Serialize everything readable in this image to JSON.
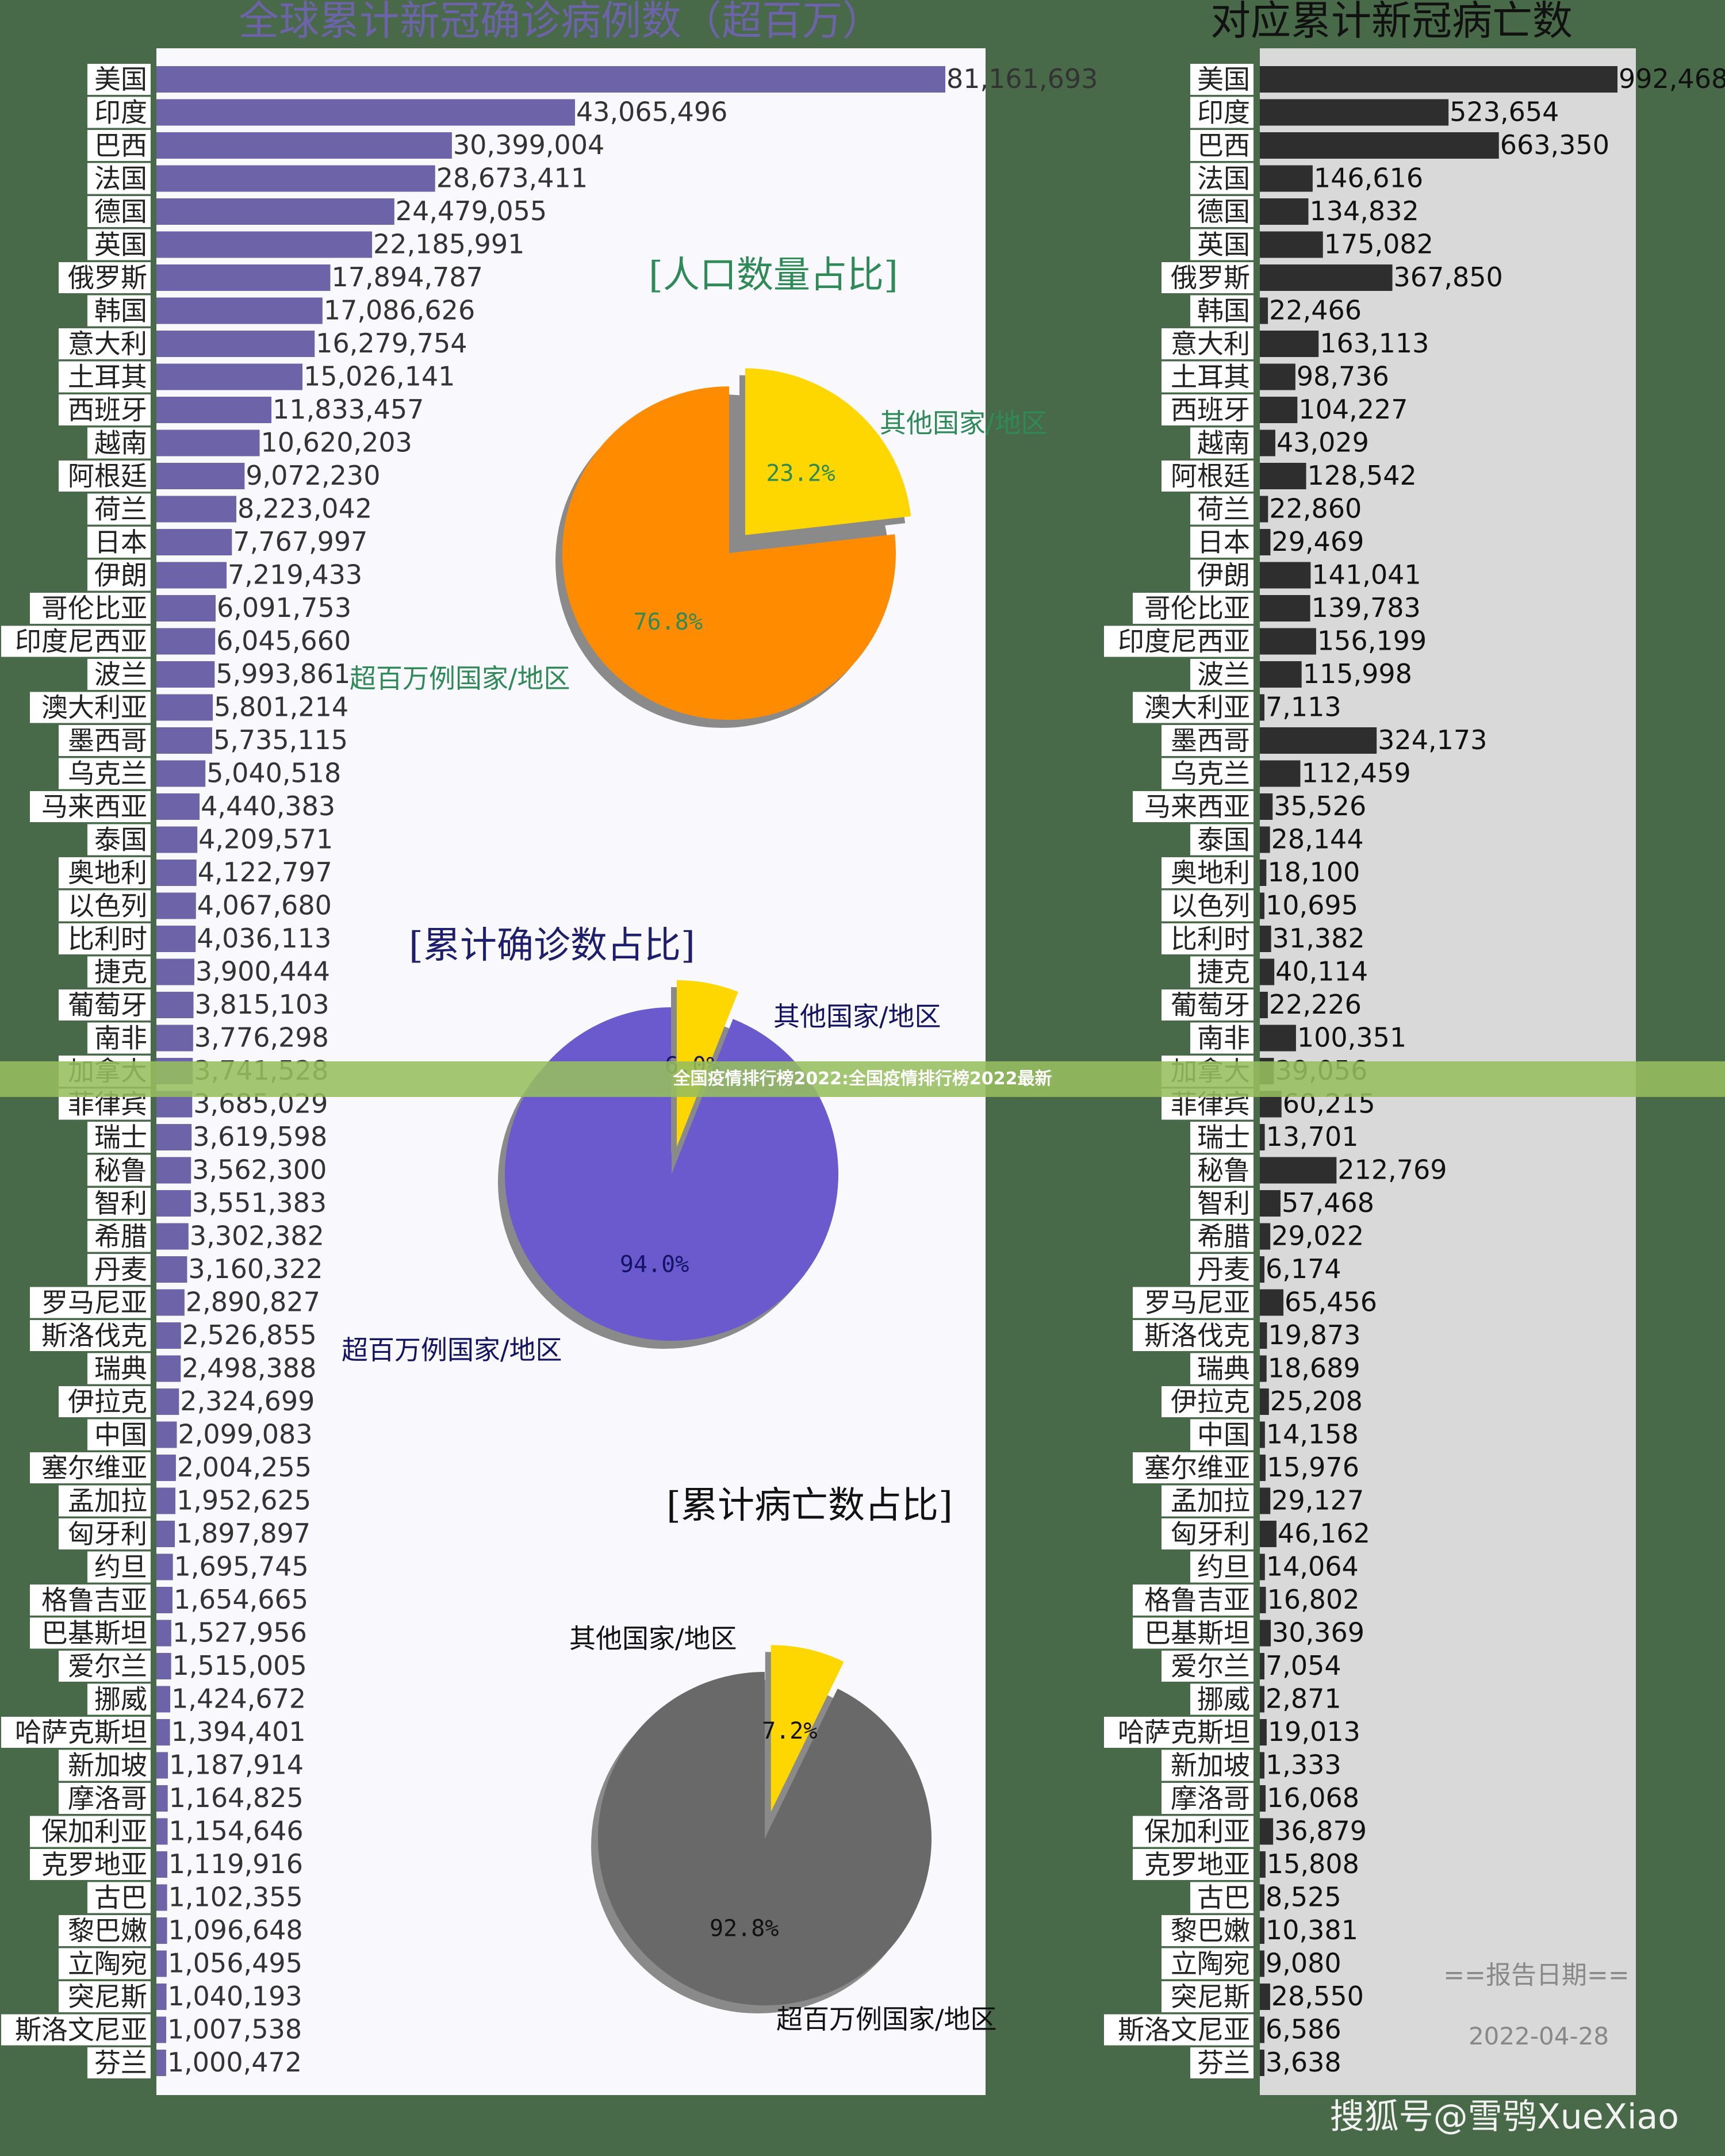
{
  "banner": "全国疫情排行榜2022:全国疫情排行榜2022最新",
  "watermark": "搜狐号@雪鸮XueXiao",
  "report": {
    "label": "==报告日期==",
    "date": "2022-04-28"
  },
  "colors": {
    "background": "#486a48",
    "left_panel": "#f8f8fd",
    "right_panel": "#d9d9d9",
    "cases_bar": "#6c63a8",
    "deaths_bar": "#2e2e2e",
    "pie1_major": "#ff8c00",
    "pie1_minor": "#ffd700",
    "pie2_major": "#6a5acd",
    "pie2_minor": "#ffd700",
    "pie3_major": "#696969",
    "pie3_minor": "#ffd700"
  },
  "chart_data": [
    {
      "type": "bar",
      "orientation": "horizontal",
      "title": "全球累计新冠确诊病例数（超百万）",
      "categories": [
        "美国",
        "印度",
        "巴西",
        "法国",
        "德国",
        "英国",
        "俄罗斯",
        "韩国",
        "意大利",
        "土耳其",
        "西班牙",
        "越南",
        "阿根廷",
        "荷兰",
        "日本",
        "伊朗",
        "哥伦比亚",
        "印度尼西亚",
        "波兰",
        "澳大利亚",
        "墨西哥",
        "乌克兰",
        "马来西亚",
        "泰国",
        "奥地利",
        "以色列",
        "比利时",
        "捷克",
        "葡萄牙",
        "南非",
        "加拿大",
        "菲律宾",
        "瑞士",
        "秘鲁",
        "智利",
        "希腊",
        "丹麦",
        "罗马尼亚",
        "斯洛伐克",
        "瑞典",
        "伊拉克",
        "中国",
        "塞尔维亚",
        "孟加拉",
        "匈牙利",
        "约旦",
        "格鲁吉亚",
        "巴基斯坦",
        "爱尔兰",
        "挪威",
        "哈萨克斯坦",
        "新加坡",
        "摩洛哥",
        "保加利亚",
        "克罗地亚",
        "古巴",
        "黎巴嫩",
        "立陶宛",
        "突尼斯",
        "斯洛文尼亚",
        "芬兰"
      ],
      "values": [
        81161693,
        43065496,
        30399004,
        28673411,
        24479055,
        22185991,
        17894787,
        17086626,
        16279754,
        15026141,
        11833457,
        10620203,
        9072230,
        8223042,
        7767997,
        7219433,
        6091753,
        6045660,
        5993861,
        5801214,
        5735115,
        5040518,
        4440383,
        4209571,
        4122797,
        4067680,
        4036113,
        3900444,
        3815103,
        3776298,
        3741528,
        3685029,
        3619598,
        3562300,
        3551383,
        3302382,
        3160322,
        2890827,
        2526855,
        2498388,
        2324699,
        2099083,
        2004255,
        1952625,
        1897897,
        1695745,
        1654665,
        1527956,
        1515005,
        1424672,
        1394401,
        1187914,
        1164825,
        1154646,
        1119916,
        1102355,
        1096648,
        1056495,
        1040193,
        1007538,
        1000472
      ],
      "value_labels": [
        "81,161,693",
        "43,065,496",
        "30,399,004",
        "28,673,411",
        "24,479,055",
        "22,185,991",
        "17,894,787",
        "17,086,626",
        "16,279,754",
        "15,026,141",
        "11,833,457",
        "10,620,203",
        "9,072,230",
        "8,223,042",
        "7,767,997",
        "7,219,433",
        "6,091,753",
        "6,045,660",
        "5,993,861",
        "5,801,214",
        "5,735,115",
        "5,040,518",
        "4,440,383",
        "4,209,571",
        "4,122,797",
        "4,067,680",
        "4,036,113",
        "3,900,444",
        "3,815,103",
        "3,776,298",
        "3,741,528",
        "3,685,029",
        "3,619,598",
        "3,562,300",
        "3,551,383",
        "3,302,382",
        "3,160,322",
        "2,890,827",
        "2,526,855",
        "2,498,388",
        "2,324,699",
        "2,099,083",
        "2,004,255",
        "1,952,625",
        "1,897,897",
        "1,695,745",
        "1,654,665",
        "1,527,956",
        "1,515,005",
        "1,424,672",
        "1,394,401",
        "1,187,914",
        "1,164,825",
        "1,154,646",
        "1,119,916",
        "1,102,355",
        "1,096,648",
        "1,056,495",
        "1,040,193",
        "1,007,538",
        "1,000,472"
      ],
      "xlim": [
        0,
        81161693
      ],
      "grid": false
    },
    {
      "type": "bar",
      "orientation": "horizontal",
      "title": "对应累计新冠病亡数",
      "categories": [
        "美国",
        "印度",
        "巴西",
        "法国",
        "德国",
        "英国",
        "俄罗斯",
        "韩国",
        "意大利",
        "土耳其",
        "西班牙",
        "越南",
        "阿根廷",
        "荷兰",
        "日本",
        "伊朗",
        "哥伦比亚",
        "印度尼西亚",
        "波兰",
        "澳大利亚",
        "墨西哥",
        "乌克兰",
        "马来西亚",
        "泰国",
        "奥地利",
        "以色列",
        "比利时",
        "捷克",
        "葡萄牙",
        "南非",
        "加拿大",
        "菲律宾",
        "瑞士",
        "秘鲁",
        "智利",
        "希腊",
        "丹麦",
        "罗马尼亚",
        "斯洛伐克",
        "瑞典",
        "伊拉克",
        "中国",
        "塞尔维亚",
        "孟加拉",
        "匈牙利",
        "约旦",
        "格鲁吉亚",
        "巴基斯坦",
        "爱尔兰",
        "挪威",
        "哈萨克斯坦",
        "新加坡",
        "摩洛哥",
        "保加利亚",
        "克罗地亚",
        "古巴",
        "黎巴嫩",
        "立陶宛",
        "突尼斯",
        "斯洛文尼亚",
        "芬兰"
      ],
      "values": [
        992468,
        523654,
        663350,
        146616,
        134832,
        175082,
        367850,
        22466,
        163113,
        98736,
        104227,
        43029,
        128542,
        22860,
        29469,
        141041,
        139783,
        156199,
        115998,
        7113,
        324173,
        112459,
        35526,
        28144,
        18100,
        10695,
        31382,
        40114,
        22226,
        100351,
        39056,
        60215,
        13701,
        212769,
        57468,
        29022,
        6174,
        65456,
        19873,
        18689,
        25208,
        14158,
        15976,
        29127,
        46162,
        14064,
        16802,
        30369,
        7054,
        2871,
        19013,
        1333,
        16068,
        36879,
        15808,
        8525,
        10381,
        9080,
        28550,
        6586,
        3638
      ],
      "value_labels": [
        "992,468",
        "523,654",
        "663,350",
        "146,616",
        "134,832",
        "175,082",
        "367,850",
        "22,466",
        "163,113",
        "98,736",
        "104,227",
        "43,029",
        "128,542",
        "22,860",
        "29,469",
        "141,041",
        "139,783",
        "156,199",
        "115,998",
        "7,113",
        "324,173",
        "112,459",
        "35,526",
        "28,144",
        "18,100",
        "10,695",
        "31,382",
        "40,114",
        "22,226",
        "100,351",
        "39,056",
        "60,215",
        "13,701",
        "212,769",
        "57,468",
        "29,022",
        "6,174",
        "65,456",
        "19,873",
        "18,689",
        "25,208",
        "14,158",
        "15,976",
        "29,127",
        "46,162",
        "14,064",
        "16,802",
        "30,369",
        "7,054",
        "2,871",
        "19,013",
        "1,333",
        "16,068",
        "36,879",
        "15,808",
        "8,525",
        "10,381",
        "9,080",
        "28,550",
        "6,586",
        "3,638"
      ],
      "xlim": [
        0,
        992468
      ],
      "grid": false
    },
    {
      "type": "pie",
      "title": "[人口数量占比]",
      "slices": [
        {
          "label": "超百万例国家/地区",
          "value": 76.8,
          "pct_label": "76.8%"
        },
        {
          "label": "其他国家/地区",
          "value": 23.2,
          "pct_label": "23.2%"
        }
      ]
    },
    {
      "type": "pie",
      "title": "[累计确诊数占比]",
      "slices": [
        {
          "label": "超百万例国家/地区",
          "value": 94.0,
          "pct_label": "94.0%"
        },
        {
          "label": "其他国家/地区",
          "value": 6.0,
          "pct_label": "6.0%"
        }
      ]
    },
    {
      "type": "pie",
      "title": "[累计病亡数占比]",
      "slices": [
        {
          "label": "超百万例国家/地区",
          "value": 92.8,
          "pct_label": "92.8%"
        },
        {
          "label": "其他国家/地区",
          "value": 7.2,
          "pct_label": "7.2%"
        }
      ]
    }
  ]
}
